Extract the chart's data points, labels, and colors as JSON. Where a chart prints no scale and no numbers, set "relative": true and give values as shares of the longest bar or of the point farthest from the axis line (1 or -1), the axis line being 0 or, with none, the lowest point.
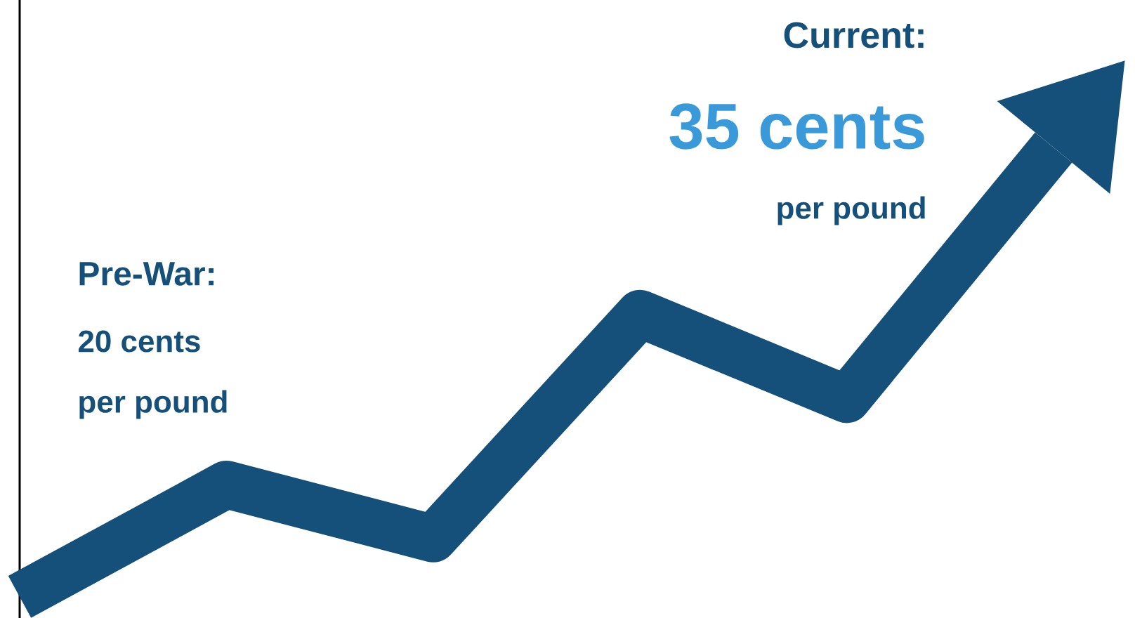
{
  "chart_data": {
    "type": "line",
    "relative": true,
    "categories": [
      null,
      null,
      null,
      null,
      null,
      null
    ],
    "values": [
      0,
      0.25,
      0.13,
      0.63,
      0.44,
      1
    ],
    "color": "#14507a",
    "annotations": [
      "Pre-War:",
      "20 cents",
      "per pound",
      "Current:",
      "35 cents",
      "per pound"
    ]
  }
}
